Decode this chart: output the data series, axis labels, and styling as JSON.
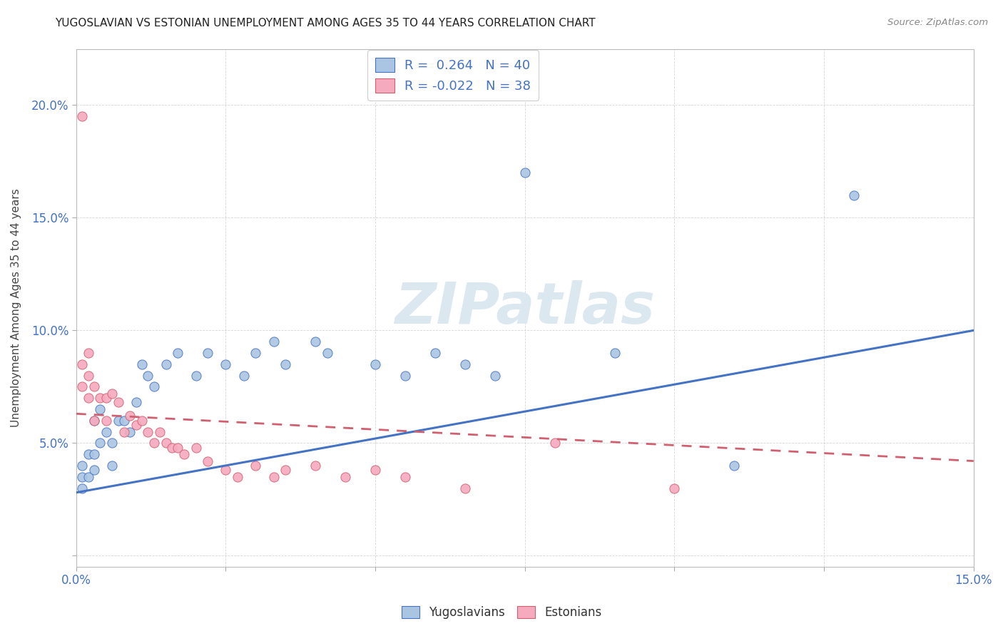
{
  "title": "YUGOSLAVIAN VS ESTONIAN UNEMPLOYMENT AMONG AGES 35 TO 44 YEARS CORRELATION CHART",
  "source": "Source: ZipAtlas.com",
  "xlabel": "",
  "ylabel": "Unemployment Among Ages 35 to 44 years",
  "xlim": [
    0,
    0.15
  ],
  "ylim": [
    -0.005,
    0.225
  ],
  "xticks": [
    0.0,
    0.025,
    0.05,
    0.075,
    0.1,
    0.125,
    0.15
  ],
  "xtick_labels": [
    "0.0%",
    "",
    "",
    "",
    "",
    "",
    "15.0%"
  ],
  "yticks": [
    0.0,
    0.05,
    0.1,
    0.15,
    0.2
  ],
  "ytick_labels": [
    "",
    "5.0%",
    "10.0%",
    "15.0%",
    "20.0%"
  ],
  "r_yugo": 0.264,
  "n_yugo": 40,
  "r_esto": -0.022,
  "n_esto": 38,
  "yugoslavian_color": "#aac5e2",
  "estonian_color": "#f5aabe",
  "yugoslavian_line_color": "#4472c4",
  "estonian_line_color": "#d06070",
  "watermark_text": "ZIPatlas",
  "watermark_color": "#dce8f0",
  "legend_blue_label": "Yugoslavians",
  "legend_pink_label": "Estonians",
  "yugo_x": [
    0.001,
    0.001,
    0.001,
    0.002,
    0.002,
    0.003,
    0.003,
    0.003,
    0.004,
    0.004,
    0.005,
    0.006,
    0.006,
    0.007,
    0.008,
    0.009,
    0.01,
    0.011,
    0.012,
    0.013,
    0.015,
    0.017,
    0.02,
    0.022,
    0.025,
    0.028,
    0.03,
    0.033,
    0.035,
    0.04,
    0.042,
    0.05,
    0.055,
    0.06,
    0.065,
    0.07,
    0.075,
    0.09,
    0.11,
    0.13
  ],
  "yugo_y": [
    0.04,
    0.035,
    0.03,
    0.045,
    0.035,
    0.06,
    0.045,
    0.038,
    0.065,
    0.05,
    0.055,
    0.05,
    0.04,
    0.06,
    0.06,
    0.055,
    0.068,
    0.085,
    0.08,
    0.075,
    0.085,
    0.09,
    0.08,
    0.09,
    0.085,
    0.08,
    0.09,
    0.095,
    0.085,
    0.095,
    0.09,
    0.085,
    0.08,
    0.09,
    0.085,
    0.08,
    0.17,
    0.09,
    0.04,
    0.16
  ],
  "esto_x": [
    0.001,
    0.001,
    0.001,
    0.002,
    0.002,
    0.002,
    0.003,
    0.003,
    0.004,
    0.005,
    0.005,
    0.006,
    0.007,
    0.008,
    0.009,
    0.01,
    0.011,
    0.012,
    0.013,
    0.014,
    0.015,
    0.016,
    0.017,
    0.018,
    0.02,
    0.022,
    0.025,
    0.027,
    0.03,
    0.033,
    0.035,
    0.04,
    0.045,
    0.05,
    0.055,
    0.065,
    0.08,
    0.1
  ],
  "esto_y": [
    0.195,
    0.085,
    0.075,
    0.09,
    0.08,
    0.07,
    0.075,
    0.06,
    0.07,
    0.07,
    0.06,
    0.072,
    0.068,
    0.055,
    0.062,
    0.058,
    0.06,
    0.055,
    0.05,
    0.055,
    0.05,
    0.048,
    0.048,
    0.045,
    0.048,
    0.042,
    0.038,
    0.035,
    0.04,
    0.035,
    0.038,
    0.04,
    0.035,
    0.038,
    0.035,
    0.03,
    0.05,
    0.03
  ],
  "yugo_trend_x0": 0.0,
  "yugo_trend_y0": 0.028,
  "yugo_trend_x1": 0.15,
  "yugo_trend_y1": 0.1,
  "esto_trend_x0": 0.0,
  "esto_trend_y0": 0.063,
  "esto_trend_x1": 0.15,
  "esto_trend_y1": 0.042
}
